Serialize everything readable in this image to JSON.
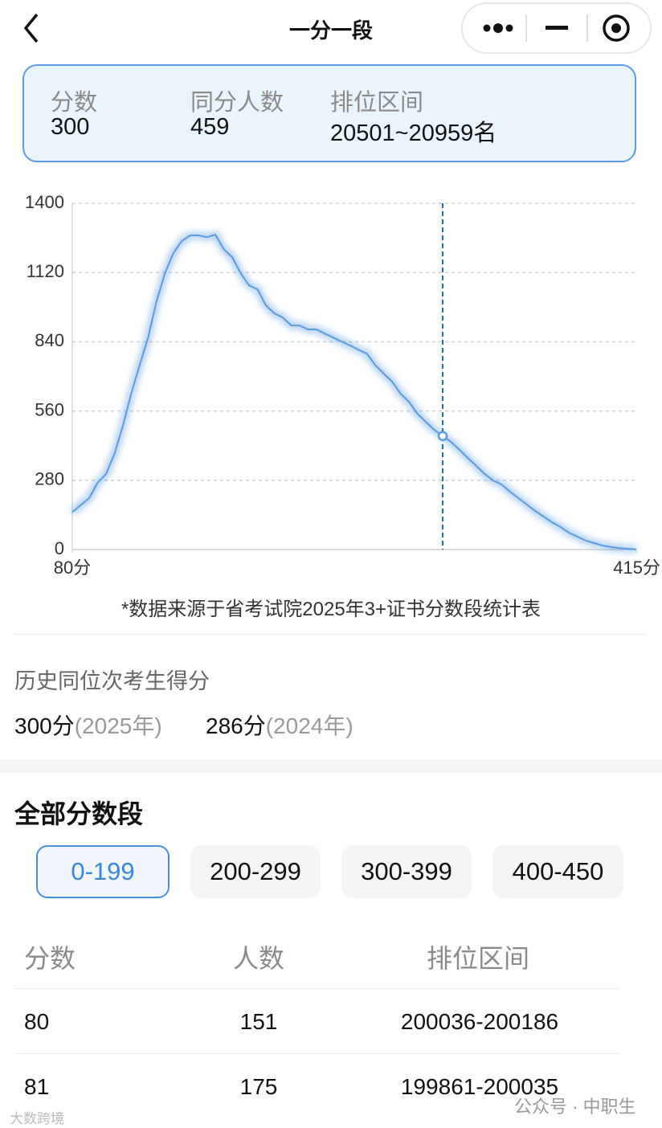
{
  "nav": {
    "title": "一分一段"
  },
  "summary": {
    "labels": [
      "分数",
      "同分人数",
      "排位区间"
    ],
    "values": [
      "300",
      "459",
      "20501~20959名"
    ]
  },
  "chart_data": {
    "type": "line",
    "x": [
      80,
      85,
      90,
      95,
      100,
      105,
      110,
      115,
      120,
      125,
      130,
      135,
      140,
      145,
      150,
      155,
      160,
      165,
      170,
      175,
      180,
      185,
      190,
      195,
      200,
      205,
      210,
      215,
      220,
      225,
      230,
      235,
      240,
      245,
      250,
      255,
      260,
      265,
      270,
      275,
      280,
      285,
      290,
      295,
      300,
      305,
      310,
      315,
      320,
      325,
      330,
      335,
      340,
      345,
      350,
      355,
      360,
      365,
      370,
      375,
      380,
      385,
      390,
      395,
      400,
      405,
      410,
      415
    ],
    "values": [
      151,
      180,
      208,
      270,
      305,
      386,
      500,
      630,
      745,
      857,
      1003,
      1117,
      1198,
      1247,
      1270,
      1270,
      1263,
      1273,
      1214,
      1182,
      1117,
      1068,
      1052,
      987,
      955,
      938,
      906,
      906,
      890,
      890,
      873,
      857,
      841,
      825,
      808,
      792,
      745,
      711,
      679,
      630,
      597,
      549,
      516,
      484,
      459,
      435,
      403,
      370,
      338,
      305,
      279,
      263,
      234,
      208,
      182,
      156,
      133,
      110,
      91,
      68,
      52,
      36,
      26,
      16,
      10,
      6,
      3,
      1
    ],
    "color": "#5b9be0",
    "xlim": [
      80,
      415
    ],
    "xticks": [
      {
        "value": 80,
        "label": "80分"
      },
      {
        "value": 415,
        "label": "415分"
      }
    ],
    "ylim": [
      0,
      1400
    ],
    "yticks": [
      0,
      280,
      560,
      840,
      1120,
      1400
    ],
    "grid": true,
    "highlight_x": 300,
    "note": "*数据来源于省考试院2025年3+证书分数段统计表"
  },
  "history": {
    "title": "历史同位次考生得分",
    "items": [
      {
        "score": "300分",
        "year": "(2025年)"
      },
      {
        "score": "286分",
        "year": "(2024年)"
      }
    ]
  },
  "segments": {
    "title": "全部分数段",
    "tabs": [
      "0-199",
      "200-299",
      "300-399",
      "400-450"
    ],
    "active": 0
  },
  "table": {
    "header": [
      "分数",
      "人数",
      "排位区间"
    ],
    "rows": [
      [
        "80",
        "151",
        "200036-200186"
      ],
      [
        "81",
        "175",
        "199861-200035"
      ]
    ]
  },
  "watermark": {
    "left": "大数跨境",
    "right": "公众号 · 中职生"
  }
}
